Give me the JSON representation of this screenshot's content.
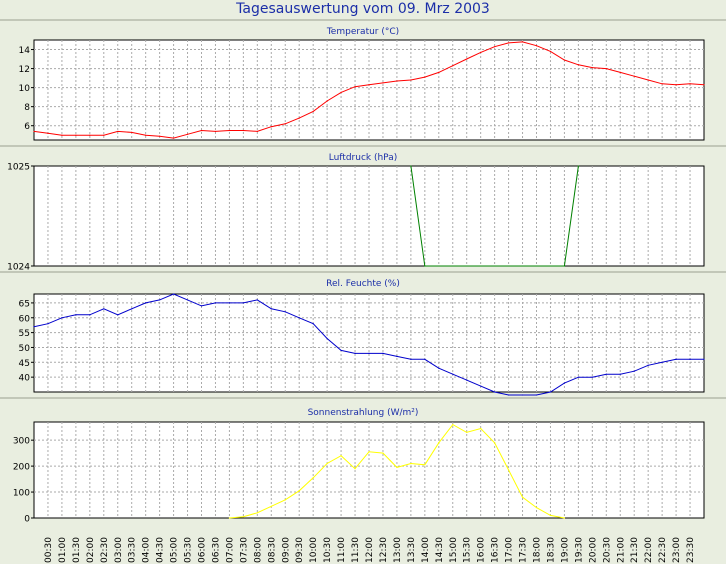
{
  "title": "Tagesauswertung vom 09. Mrz 2003",
  "time_labels": [
    "00:30",
    "01:00",
    "01:30",
    "02:00",
    "02:30",
    "03:00",
    "03:30",
    "04:00",
    "04:30",
    "05:00",
    "05:30",
    "06:00",
    "06:30",
    "07:00",
    "07:30",
    "08:00",
    "08:30",
    "09:00",
    "09:30",
    "10:00",
    "10:30",
    "11:00",
    "11:30",
    "12:00",
    "12:30",
    "13:00",
    "13:30",
    "14:00",
    "14:30",
    "15:00",
    "15:30",
    "16:00",
    "16:30",
    "17:00",
    "17:30",
    "18:00",
    "18:30",
    "19:00",
    "19:30",
    "20:00",
    "20:30",
    "21:00",
    "21:30",
    "22:00",
    "22:30",
    "23:00",
    "23:30"
  ],
  "chart_data": [
    {
      "type": "line",
      "title": "Temperatur (°C)",
      "ylim": [
        4.5,
        15
      ],
      "yticks": [
        6,
        8,
        10,
        12,
        14
      ],
      "grid": true,
      "color": "#ff0000",
      "x": [
        "00:00",
        "00:30",
        "01:00",
        "01:30",
        "02:00",
        "02:30",
        "03:00",
        "03:30",
        "04:00",
        "04:30",
        "05:00",
        "05:30",
        "06:00",
        "06:30",
        "07:00",
        "07:30",
        "08:00",
        "08:30",
        "09:00",
        "09:30",
        "10:00",
        "10:30",
        "11:00",
        "11:30",
        "12:00",
        "12:30",
        "13:00",
        "13:30",
        "14:00",
        "14:30",
        "15:00",
        "15:30",
        "16:00",
        "16:30",
        "17:00",
        "17:30",
        "18:00",
        "18:30",
        "19:00",
        "19:30",
        "20:00",
        "20:30",
        "21:00",
        "21:30",
        "22:00",
        "22:30",
        "23:00",
        "23:30",
        "24:00"
      ],
      "values": [
        5.4,
        5.2,
        5.0,
        5.0,
        5.0,
        5.0,
        5.4,
        5.3,
        5.0,
        4.9,
        4.7,
        5.1,
        5.5,
        5.4,
        5.5,
        5.5,
        5.4,
        5.9,
        6.2,
        6.8,
        7.5,
        8.6,
        9.5,
        10.1,
        10.3,
        10.5,
        10.7,
        10.8,
        11.1,
        11.6,
        12.3,
        13.0,
        13.7,
        14.3,
        14.7,
        14.8,
        14.4,
        13.8,
        12.9,
        12.4,
        12.1,
        12.0,
        11.6,
        11.2,
        10.8,
        10.4,
        10.3,
        10.4,
        10.3
      ]
    },
    {
      "type": "line",
      "title": "Luftdruck (hPa)",
      "ylim": [
        1024,
        1025
      ],
      "yticks": [
        1024,
        1025
      ],
      "grid": true,
      "color": "#008000",
      "x": [
        "13:30",
        "14:00",
        "19:00",
        "19:30"
      ],
      "values": [
        1025,
        1024,
        1024,
        1025
      ]
    },
    {
      "type": "line",
      "title": "Rel. Feuchte (%)",
      "ylim": [
        35,
        68
      ],
      "yticks": [
        40,
        45,
        50,
        55,
        60,
        65
      ],
      "grid": true,
      "color": "#0000cc",
      "x": [
        "00:00",
        "00:30",
        "01:00",
        "01:30",
        "02:00",
        "02:30",
        "03:00",
        "03:30",
        "04:00",
        "04:30",
        "05:00",
        "05:30",
        "06:00",
        "06:30",
        "07:00",
        "07:30",
        "08:00",
        "08:30",
        "09:00",
        "09:30",
        "10:00",
        "10:30",
        "11:00",
        "11:30",
        "12:00",
        "12:30",
        "13:00",
        "13:30",
        "14:00",
        "14:30",
        "15:00",
        "15:30",
        "16:00",
        "16:30",
        "17:00",
        "17:30",
        "18:00",
        "18:30",
        "19:00",
        "19:30",
        "20:00",
        "20:30",
        "21:00",
        "21:30",
        "22:00",
        "22:30",
        "23:00",
        "23:30",
        "24:00"
      ],
      "values": [
        57,
        58,
        60,
        61,
        61,
        63,
        61,
        63,
        65,
        66,
        68,
        66,
        64,
        65,
        65,
        65,
        66,
        63,
        62,
        60,
        58,
        53,
        49,
        48,
        48,
        48,
        47,
        46,
        46,
        43,
        41,
        39,
        37,
        35,
        34,
        34,
        34,
        35,
        38,
        40,
        40,
        41,
        41,
        42,
        44,
        45,
        46,
        46,
        46
      ]
    },
    {
      "type": "line",
      "title": "Sonnenstrahlung (W/m²)",
      "ylim": [
        0,
        370
      ],
      "yticks": [
        0,
        100,
        200,
        300
      ],
      "grid": true,
      "color": "#ffff00",
      "x": [
        "07:00",
        "07:30",
        "08:00",
        "08:30",
        "09:00",
        "09:30",
        "10:00",
        "10:30",
        "11:00",
        "11:30",
        "12:00",
        "12:30",
        "13:00",
        "13:30",
        "14:00",
        "14:30",
        "15:00",
        "15:30",
        "16:00",
        "16:30",
        "17:00",
        "17:30",
        "18:00",
        "18:30",
        "19:00"
      ],
      "values": [
        0,
        5,
        20,
        45,
        70,
        105,
        155,
        210,
        240,
        190,
        255,
        250,
        195,
        210,
        205,
        290,
        360,
        330,
        345,
        290,
        185,
        80,
        40,
        10,
        0
      ]
    }
  ]
}
